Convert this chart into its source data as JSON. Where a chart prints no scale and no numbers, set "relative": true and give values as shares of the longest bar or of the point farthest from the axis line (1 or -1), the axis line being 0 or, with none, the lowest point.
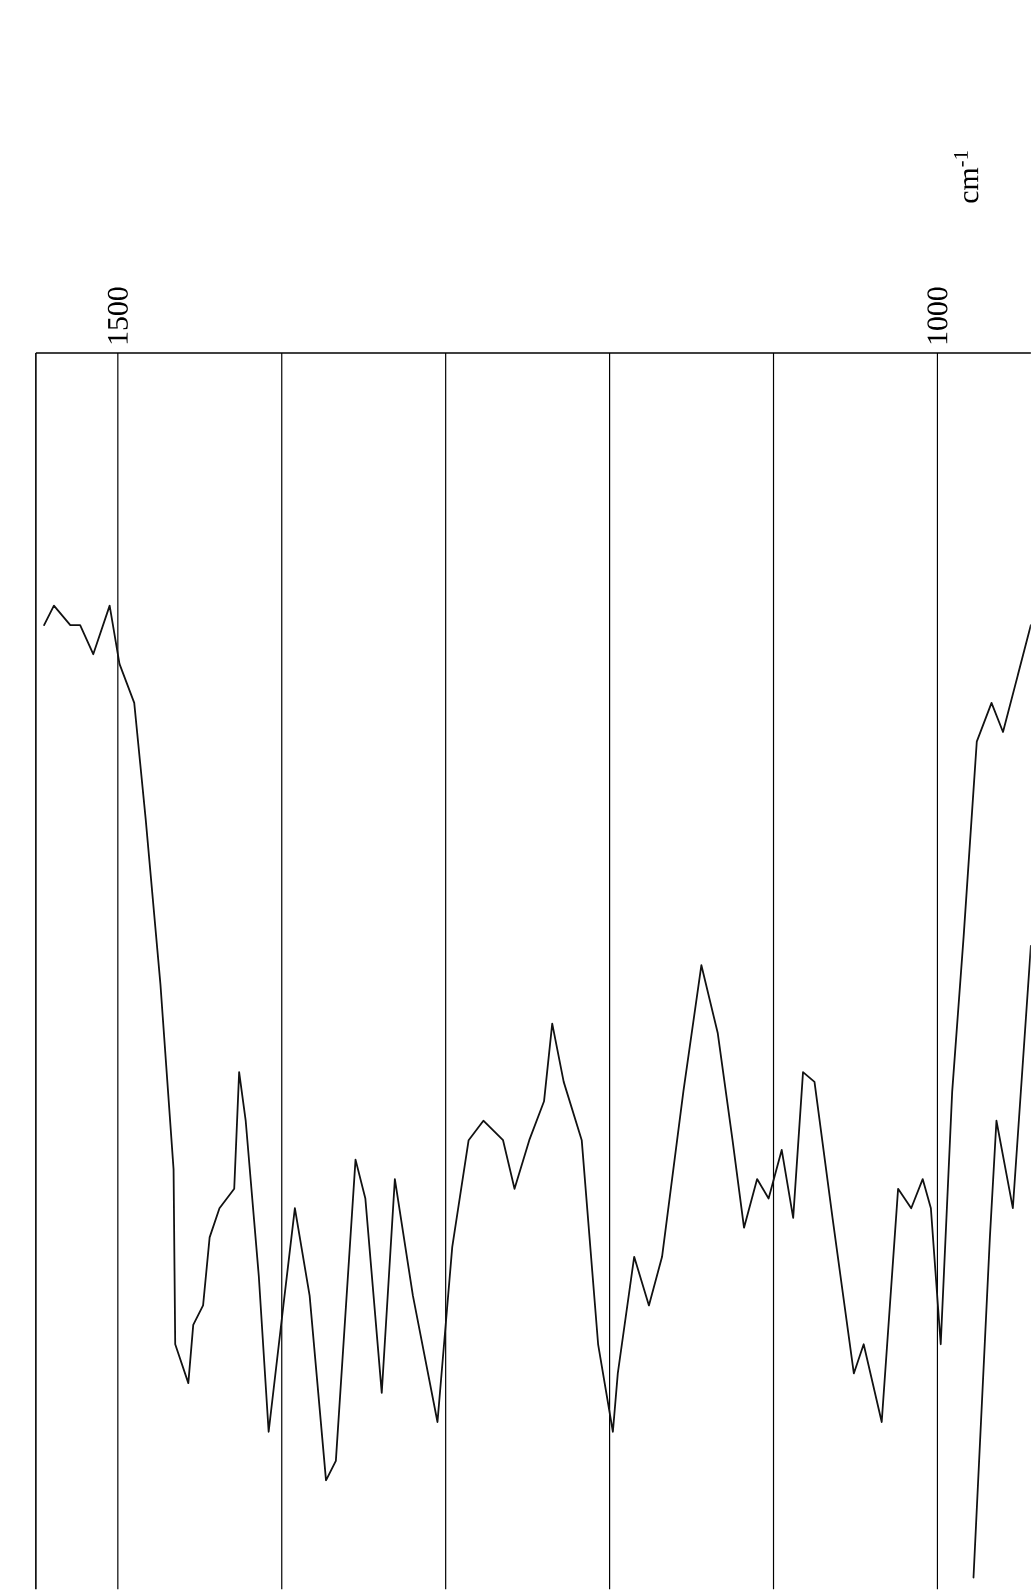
{
  "chart_data": {
    "type": "line",
    "relative": true,
    "xlim": [
      1550,
      943
    ],
    "xticks": [
      {
        "value": 1500,
        "label": "1500"
      },
      {
        "value": 1400,
        "label": null
      },
      {
        "value": 1300,
        "label": null
      },
      {
        "value": 1200,
        "label": null
      },
      {
        "value": 1100,
        "label": null
      },
      {
        "value": 1000,
        "label": "1000"
      }
    ],
    "annotations": [
      "cm$^{-1}$"
    ],
    "grid": "x",
    "line_style": "solid",
    "series": [
      {
        "color": "#111111",
        "x": [
          1545,
          1539,
          1529,
          1523,
          1515,
          1505,
          1499,
          1490,
          1483,
          1474,
          1466,
          1465,
          1457,
          1454,
          1448,
          1444,
          1438,
          1429,
          1426,
          1422,
          1414,
          1408,
          1399,
          1392,
          1383,
          1373,
          1367,
          1355,
          1349,
          1339,
          1331,
          1320,
          1305,
          1296,
          1286,
          1277,
          1265,
          1258,
          1249,
          1240,
          1235,
          1228,
          1217,
          1207,
          1198,
          1195,
          1185,
          1176,
          1168,
          1155,
          1144,
          1134,
          1125,
          1118,
          1110,
          1103,
          1095,
          1088,
          1082,
          1075,
          1064,
          1051,
          1045,
          1034,
          1024,
          1016,
          1009,
          1004,
          998,
          991,
          984,
          976,
          967,
          960,
          943
        ],
        "values": [
          0.98,
          1.0,
          0.98,
          0.98,
          0.95,
          1.0,
          0.94,
          0.9,
          0.78,
          0.61,
          0.42,
          0.24,
          0.2,
          0.26,
          0.28,
          0.35,
          0.38,
          0.4,
          0.52,
          0.47,
          0.31,
          0.15,
          0.28,
          0.38,
          0.29,
          0.1,
          0.12,
          0.43,
          0.39,
          0.19,
          0.41,
          0.29,
          0.16,
          0.34,
          0.45,
          0.47,
          0.45,
          0.4,
          0.45,
          0.49,
          0.57,
          0.51,
          0.45,
          0.24,
          0.15,
          0.21,
          0.33,
          0.28,
          0.33,
          0.5,
          0.63,
          0.56,
          0.45,
          0.36,
          0.41,
          0.39,
          0.44,
          0.37,
          0.52,
          0.51,
          0.37,
          0.21,
          0.24,
          0.16,
          0.4,
          0.38,
          0.41,
          0.38,
          0.24,
          0.5,
          0.66,
          0.86,
          0.9,
          0.87,
          0.98
        ]
      },
      {
        "color": "#111111",
        "x": [
          978,
          968,
          964,
          954,
          943
        ],
        "values": [
          0,
          0.35,
          0.47,
          0.38,
          0.65
        ]
      }
    ]
  }
}
